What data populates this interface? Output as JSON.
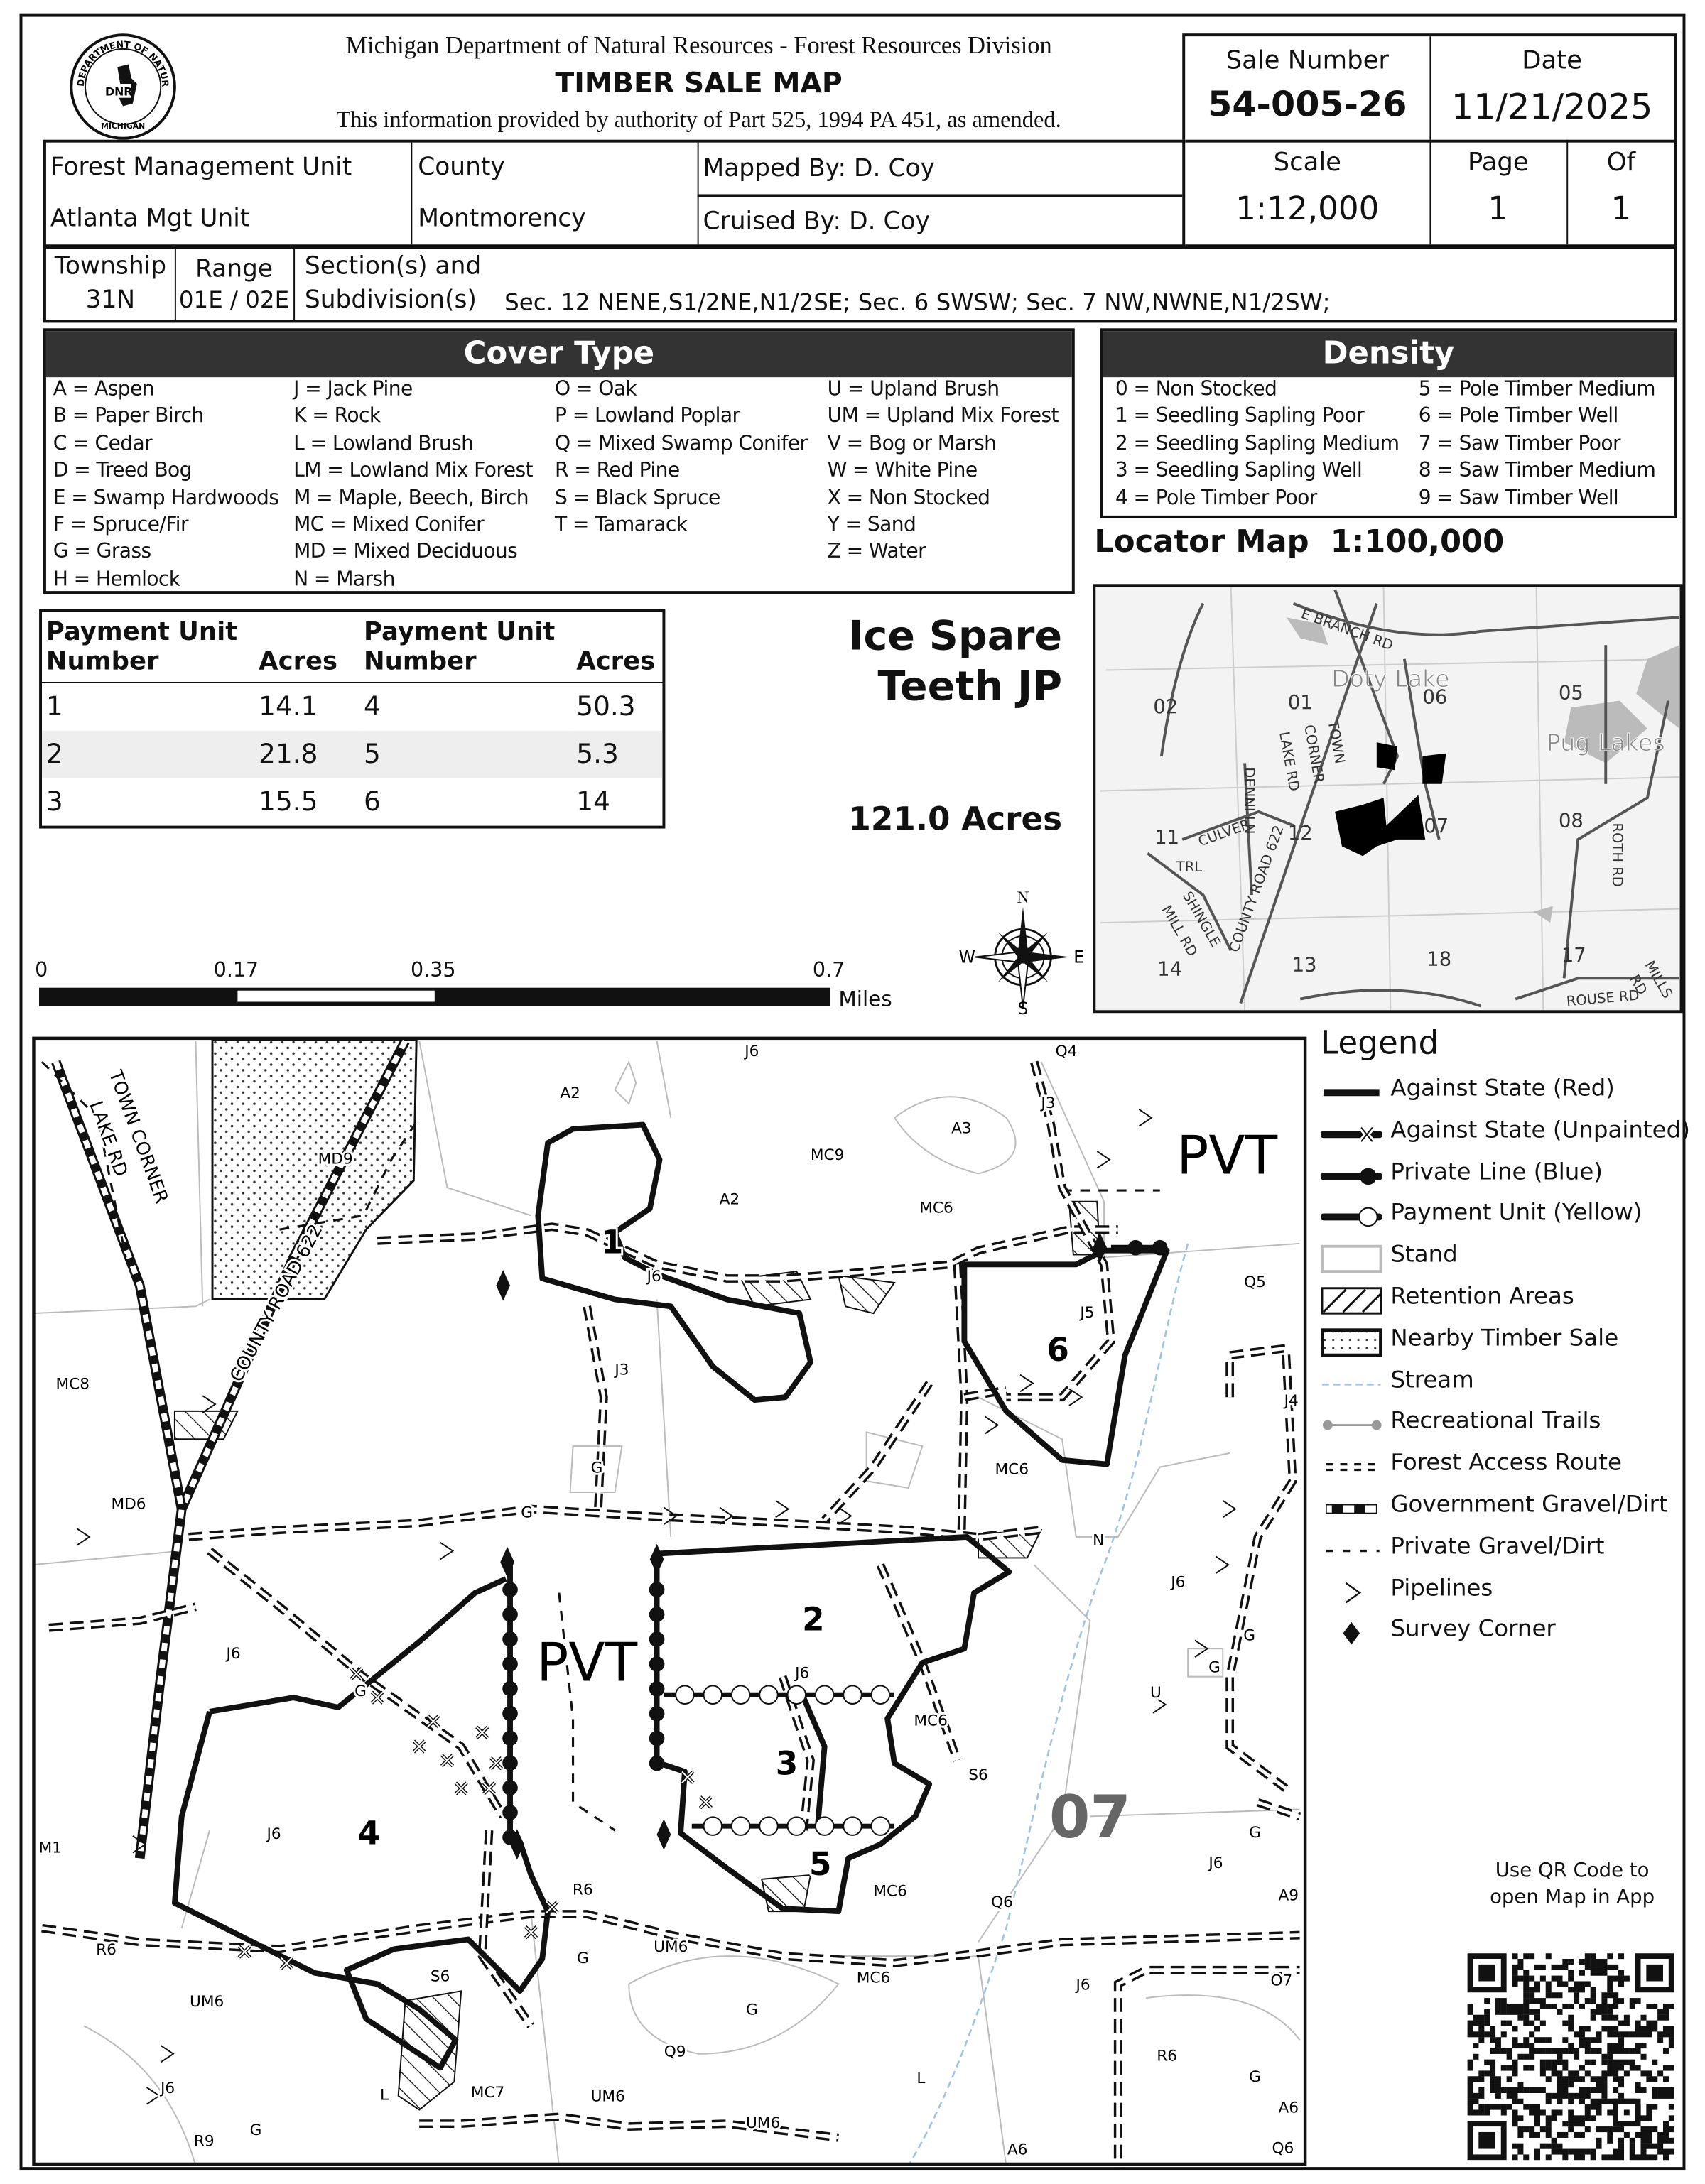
{
  "header": {
    "agency": "Michigan Department of Natural Resources - Forest Resources Division",
    "title": "TIMBER SALE MAP",
    "authority": "This information provided by authority of Part 525, 1994 PA 451, as amended.",
    "logo_text": "DEPARTMENT OF NATURAL RESOURCES · MICHIGAN · DNR"
  },
  "sale": {
    "sale_number_label": "Sale Number",
    "sale_number": "54-005-26",
    "date_label": "Date",
    "date": "11/21/2025",
    "scale_label": "Scale",
    "scale": "1:12,000",
    "page_label": "Page",
    "page": "1",
    "of_label": "Of",
    "of": "1"
  },
  "info": {
    "fmu_label": "Forest Management Unit",
    "fmu": "Atlanta Mgt Unit",
    "county_label": "County",
    "county": "Montmorency",
    "mapped_by_label": "Mapped By:",
    "mapped_by": "D. Coy",
    "cruised_by_label": "Cruised By:",
    "cruised_by": "D. Coy",
    "township_label": "Township",
    "township": "31N",
    "range_label": "Range",
    "range": "01E / 02E",
    "sections_label_1": "Section(s) and",
    "sections_label_2": "Subdivision(s)",
    "sections": "Sec. 12 NENE,S1/2NE,N1/2SE; Sec. 6  SWSW; Sec. 7  NW,NWNE,N1/2SW;"
  },
  "cover_type": {
    "title": "Cover Type",
    "columns": [
      [
        "A = Aspen",
        "B = Paper Birch",
        "C = Cedar",
        "D = Treed Bog",
        "E = Swamp Hardwoods",
        "F = Spruce/Fir",
        "G = Grass",
        "H = Hemlock"
      ],
      [
        "J = Jack Pine",
        "K = Rock",
        "L = Lowland Brush",
        "LM = Lowland Mix Forest",
        "M = Maple, Beech, Birch",
        "MC = Mixed Conifer",
        "MD = Mixed Deciduous",
        "N = Marsh"
      ],
      [
        "O = Oak",
        "P = Lowland Poplar",
        "Q = Mixed Swamp Conifer",
        "R = Red Pine",
        "S = Black Spruce",
        "T = Tamarack"
      ],
      [
        "U = Upland Brush",
        "UM = Upland Mix Forest",
        "V = Bog or Marsh",
        "W = White Pine",
        "X = Non Stocked",
        "Y = Sand",
        "Z = Water"
      ]
    ]
  },
  "density": {
    "title": "Density",
    "columns": [
      [
        "0 = Non Stocked",
        "1 = Seedling Sapling Poor",
        "2 = Seedling Sapling Medium",
        "3 = Seedling Sapling Well",
        "4 = Pole Timber Poor"
      ],
      [
        "5 = Pole Timber Medium",
        "6 = Pole Timber Well",
        "7 = Saw Timber Poor",
        "8 = Saw Timber Medium",
        "9 = Saw Timber Well"
      ]
    ]
  },
  "payment_units": {
    "headers": [
      "Payment Unit Number",
      "Acres",
      "Payment Unit Number",
      "Acres"
    ],
    "rows": [
      [
        "1",
        "14.1",
        "4",
        "50.3"
      ],
      [
        "2",
        "21.8",
        "5",
        "5.3"
      ],
      [
        "3",
        "15.5",
        "6",
        "14"
      ]
    ]
  },
  "sale_name": [
    "Ice Spare",
    "Teeth JP"
  ],
  "total_acres": "121.0 Acres",
  "locator": {
    "title": "Locator Map",
    "scale": "1:100,000",
    "labels": [
      "E BRANCH RD",
      "Doty Lake",
      "06",
      "05",
      "Pug Lakes",
      "02",
      "01",
      "TOWN",
      "CORNER",
      "LAKE RD",
      "DENNI LN",
      "12",
      "07",
      "08",
      "ROTH RD",
      "11",
      "CULVER",
      "TRL",
      "SHINGLE",
      "MILL RD",
      "COUNTY ROAD 622",
      "14",
      "13",
      "18",
      "17",
      "ROUSE RD",
      "MILLS",
      "RD"
    ]
  },
  "scale_bar": {
    "ticks": [
      "0",
      "0.17",
      "0.35",
      "0.7"
    ],
    "unit": "Miles"
  },
  "compass": {
    "n": "N",
    "s": "S",
    "e": "E",
    "w": "W"
  },
  "map": {
    "stand_labels": [
      "J6",
      "Q4",
      "A2",
      "J3",
      "A3",
      "MD9",
      "MC9",
      "A2",
      "MC6",
      "J6",
      "Q5",
      "J5",
      "J3",
      "MC8",
      "J4",
      "MC6",
      "G",
      "MD6",
      "G",
      "N",
      "J6",
      "J6",
      "G",
      "J6",
      "G",
      "U",
      "MC6",
      "G",
      "S6",
      "J6",
      "G",
      "J6",
      "M1",
      "R6",
      "MC6",
      "A9",
      "Q6",
      "R6",
      "UM6",
      "G",
      "S6",
      "MC6",
      "O7",
      "J6",
      "UM6",
      "G",
      "Q9",
      "R6",
      "G",
      "L",
      "L",
      "MC7",
      "UM6",
      "J6",
      "A6",
      "G",
      "R9",
      "UM6",
      "A6",
      "Q6"
    ],
    "unit_labels": [
      "1",
      "6",
      "2",
      "3",
      "4",
      "5"
    ],
    "pvt_labels": [
      "PVT",
      "PVT"
    ],
    "section_label": "07",
    "road_labels": [
      "TOWN CORNER",
      "LAKE RD",
      "COUNTY ROAD 622"
    ]
  },
  "legend": {
    "title": "Legend",
    "items": [
      {
        "label": "Against State (Red)",
        "icon": "solid-line"
      },
      {
        "label": "Against State (Unpainted)",
        "icon": "line-with-x"
      },
      {
        "label": "Private Line (Blue)",
        "icon": "line-with-dot"
      },
      {
        "label": "Payment Unit (Yellow)",
        "icon": "line-with-circle"
      },
      {
        "label": "Stand",
        "icon": "grey-outline-box"
      },
      {
        "label": "Retention Areas",
        "icon": "hatched-box"
      },
      {
        "label": "Nearby Timber Sale",
        "icon": "dotted-box"
      },
      {
        "label": "Stream",
        "icon": "blue-dashed-line"
      },
      {
        "label": "Recreational Trails",
        "icon": "grey-dot-line"
      },
      {
        "label": "Forest Access Route",
        "icon": "double-dashed-line"
      },
      {
        "label": "Government Gravel/Dirt",
        "icon": "black-white-dashed-line"
      },
      {
        "label": "Private Gravel/Dirt",
        "icon": "dashed-line"
      },
      {
        "label": "Pipelines",
        "icon": "chevron"
      },
      {
        "label": "Survey Corner",
        "icon": "diamond"
      }
    ],
    "colors": {
      "stream": "#9dc3e6",
      "trail": "#999999",
      "stand": "#bbbbbb",
      "header_bar": "#333333",
      "section_label": "#666666"
    }
  },
  "qr": {
    "caption_1": "Use QR Code to",
    "caption_2": "open Map in App"
  }
}
